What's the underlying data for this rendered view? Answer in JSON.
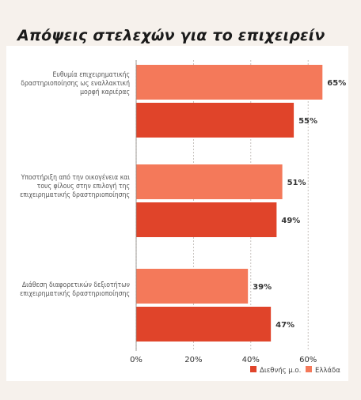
{
  "chart_data": {
    "type": "bar",
    "orientation": "horizontal",
    "title": "Απόψεις στελεχών για το επιχειρείν",
    "categories": [
      "Ευθυμία επιχειρηματικής δραστηριοποίησης ως εναλλακτική μορφή καριέρας",
      "Υποστήριξη από την οικογένεια και τους φίλους στην επιλογή της επιχειρηματικής δραστηριοποίησης",
      "Διάθεση διαφορετικών δεξιοτήτων επιχειρηματικής δραστηριοποίησης"
    ],
    "series": [
      {
        "name": "Ελλάδα",
        "values": [
          65,
          51,
          39
        ],
        "color": "#f4795a"
      },
      {
        "name": "Διεθνής μ.ο.",
        "values": [
          55,
          49,
          47
        ],
        "color": "#e0442a"
      }
    ],
    "value_labels": {
      "Ελλάδα": [
        "65%",
        "51%",
        "39%"
      ],
      "Διεθνής μ.ο.": [
        "55%",
        "49%",
        "47%"
      ]
    },
    "x_ticks": [
      "0%",
      "20%",
      "40%",
      "60%"
    ],
    "xlim": [
      0,
      65
    ],
    "grid": "vertical dashed",
    "legend": "bottom-right",
    "legend_order": [
      "Διεθνής μ.ο.",
      "Ελλάδα"
    ]
  }
}
